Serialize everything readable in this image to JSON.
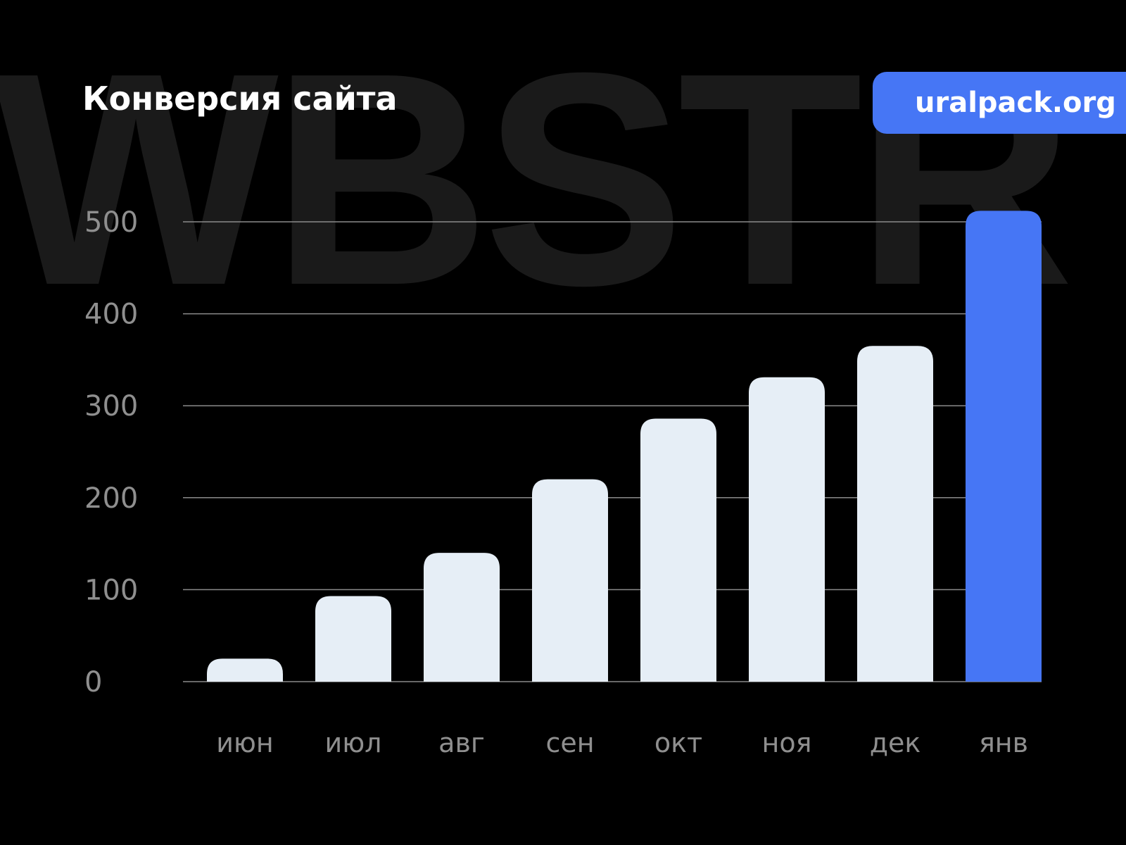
{
  "watermark": "WBSTR",
  "header": {
    "title": "Конверсия сайта",
    "site_badge": "uralpack.org"
  },
  "colors": {
    "background": "#000000",
    "bar": "#e6eef6",
    "highlight": "#4676f5",
    "grid": "#8a8a8a",
    "label": "#8f8f8f"
  },
  "chart_data": {
    "type": "bar",
    "title": "Конверсия сайта",
    "categories": [
      "июн",
      "июл",
      "авг",
      "сен",
      "окт",
      "ноя",
      "дек",
      "янв"
    ],
    "values": [
      25,
      93,
      140,
      220,
      286,
      331,
      365,
      512
    ],
    "highlight_index": 7,
    "yticks": [
      0,
      100,
      200,
      300,
      400,
      500
    ],
    "ylim": [
      0,
      500
    ],
    "grid": true,
    "xlabel": "",
    "ylabel": ""
  }
}
